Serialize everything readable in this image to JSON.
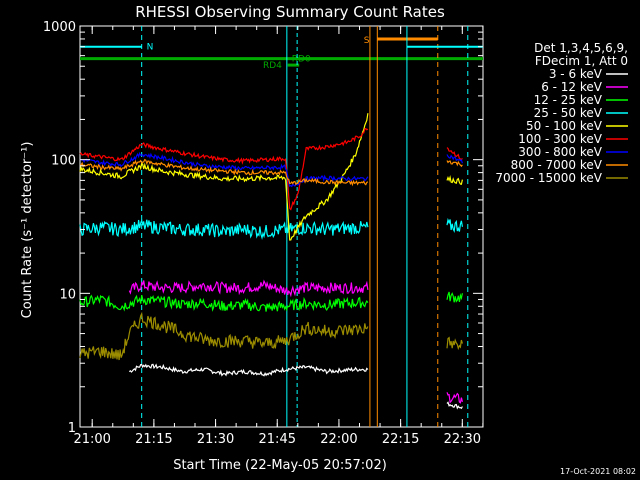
{
  "chart_data": {
    "type": "line",
    "title": "RHESSI Observing Summary Count Rates",
    "xlabel": "Start Time (22-May-05 20:57:02)",
    "ylabel": "Count Rate (s⁻¹ detector⁻¹)",
    "yscale": "log",
    "ylim": [
      1,
      1000
    ],
    "xlim_minutes": [
      0,
      98
    ],
    "x_ticks": [
      "21:00",
      "21:15",
      "21:30",
      "21:45",
      "22:00",
      "22:15",
      "22:30"
    ],
    "y_ticks": [
      "1",
      "10",
      "100",
      "1000"
    ],
    "legend_header": [
      "Det 1,3,4,5,6,9,",
      "FDecim 1, Att 0"
    ],
    "legend_position": "right",
    "footer": "17-Oct-2021 08:02",
    "data_gaps": [
      [
        0,
        12
      ],
      [
        72,
        89
      ]
    ],
    "series": [
      {
        "name": "3 - 6 keV",
        "color": "#ffffff",
        "points": [
          [
            12,
            2.6
          ],
          [
            15,
            2.9
          ],
          [
            20,
            2.8
          ],
          [
            25,
            2.6
          ],
          [
            30,
            2.7
          ],
          [
            35,
            2.5
          ],
          [
            40,
            2.6
          ],
          [
            45,
            2.5
          ],
          [
            50,
            2.7
          ],
          [
            55,
            2.8
          ],
          [
            60,
            2.6
          ],
          [
            67,
            2.7
          ],
          [
            70,
            2.7
          ],
          [
            89,
            1.5
          ],
          [
            93,
            1.4
          ]
        ]
      },
      {
        "name": "6 - 12 keV",
        "color": "#ff00ff",
        "points": [
          [
            12,
            10.5
          ],
          [
            15,
            11.5
          ],
          [
            20,
            11
          ],
          [
            25,
            11
          ],
          [
            30,
            11.5
          ],
          [
            35,
            11
          ],
          [
            40,
            11
          ],
          [
            45,
            11.5
          ],
          [
            50,
            10.5
          ],
          [
            55,
            11
          ],
          [
            60,
            11
          ],
          [
            67,
            11
          ],
          [
            70,
            11
          ],
          [
            89,
            1.7
          ],
          [
            93,
            1.6
          ]
        ]
      },
      {
        "name": "12 - 25 keV",
        "color": "#00ff00",
        "points": [
          [
            0,
            8.5
          ],
          [
            5,
            9
          ],
          [
            10,
            8
          ],
          [
            15,
            9
          ],
          [
            20,
            8.7
          ],
          [
            25,
            8.3
          ],
          [
            30,
            8.5
          ],
          [
            35,
            8
          ],
          [
            40,
            8.2
          ],
          [
            45,
            7.8
          ],
          [
            50,
            8
          ],
          [
            55,
            8.4
          ],
          [
            60,
            8.2
          ],
          [
            67,
            8.5
          ],
          [
            70,
            8.5
          ],
          [
            89,
            9.5
          ],
          [
            93,
            9.2
          ]
        ]
      },
      {
        "name": "25 - 50 keV",
        "color": "#00ffff",
        "points": [
          [
            0,
            30
          ],
          [
            5,
            31
          ],
          [
            10,
            30
          ],
          [
            15,
            32
          ],
          [
            20,
            31
          ],
          [
            25,
            30
          ],
          [
            30,
            30
          ],
          [
            35,
            29
          ],
          [
            40,
            30
          ],
          [
            45,
            29
          ],
          [
            50,
            30
          ],
          [
            55,
            31
          ],
          [
            60,
            30
          ],
          [
            67,
            31
          ],
          [
            70,
            31
          ],
          [
            89,
            32
          ],
          [
            93,
            32
          ]
        ]
      },
      {
        "name": "50 - 100 keV",
        "color": "#ffff00",
        "points": [
          [
            0,
            85
          ],
          [
            5,
            80
          ],
          [
            10,
            75
          ],
          [
            15,
            90
          ],
          [
            20,
            82
          ],
          [
            25,
            78
          ],
          [
            30,
            75
          ],
          [
            35,
            72
          ],
          [
            40,
            72
          ],
          [
            45,
            73
          ],
          [
            50,
            73
          ],
          [
            51,
            25
          ],
          [
            55,
            38
          ],
          [
            60,
            50
          ],
          [
            64,
            75
          ],
          [
            67,
            110
          ],
          [
            69,
            170
          ],
          [
            70,
            220
          ],
          [
            89,
            72
          ],
          [
            93,
            68
          ]
        ]
      },
      {
        "name": "100 - 300 keV",
        "color": "#ff0000",
        "points": [
          [
            0,
            110
          ],
          [
            5,
            105
          ],
          [
            10,
            100
          ],
          [
            15,
            130
          ],
          [
            20,
            120
          ],
          [
            25,
            112
          ],
          [
            30,
            105
          ],
          [
            35,
            100
          ],
          [
            40,
            98
          ],
          [
            45,
            100
          ],
          [
            50,
            102
          ],
          [
            51,
            42
          ],
          [
            53,
            55
          ],
          [
            55,
            120
          ],
          [
            60,
            125
          ],
          [
            65,
            135
          ],
          [
            68,
            150
          ],
          [
            70,
            175
          ],
          [
            89,
            125
          ],
          [
            93,
            100
          ]
        ]
      },
      {
        "name": "300 - 800 keV",
        "color": "#0000ff",
        "points": [
          [
            0,
            100
          ],
          [
            5,
            95
          ],
          [
            10,
            92
          ],
          [
            15,
            110
          ],
          [
            20,
            103
          ],
          [
            25,
            96
          ],
          [
            30,
            90
          ],
          [
            35,
            88
          ],
          [
            40,
            86
          ],
          [
            45,
            87
          ],
          [
            50,
            88
          ],
          [
            51,
            62
          ],
          [
            55,
            72
          ],
          [
            60,
            73
          ],
          [
            65,
            72
          ],
          [
            70,
            72
          ],
          [
            89,
            110
          ],
          [
            93,
            96
          ]
        ]
      },
      {
        "name": "800 - 7000 keV",
        "color": "#ff8c00",
        "points": [
          [
            0,
            92
          ],
          [
            5,
            88
          ],
          [
            10,
            85
          ],
          [
            15,
            98
          ],
          [
            20,
            92
          ],
          [
            25,
            87
          ],
          [
            30,
            84
          ],
          [
            35,
            82
          ],
          [
            40,
            80
          ],
          [
            45,
            80
          ],
          [
            50,
            80
          ],
          [
            51,
            66
          ],
          [
            55,
            70
          ],
          [
            60,
            68
          ],
          [
            65,
            67
          ],
          [
            70,
            67
          ],
          [
            89,
            98
          ],
          [
            93,
            92
          ]
        ]
      },
      {
        "name": "7000 - 15000 keV",
        "color": "#9b8c00",
        "points": [
          [
            0,
            3.5
          ],
          [
            5,
            3.7
          ],
          [
            10,
            3.4
          ],
          [
            12,
            5
          ],
          [
            15,
            6.5
          ],
          [
            20,
            5.8
          ],
          [
            25,
            5
          ],
          [
            30,
            4.5
          ],
          [
            35,
            4.4
          ],
          [
            40,
            4.4
          ],
          [
            45,
            4.2
          ],
          [
            50,
            4.4
          ],
          [
            55,
            5.5
          ],
          [
            60,
            5.2
          ],
          [
            65,
            5.3
          ],
          [
            70,
            5.5
          ],
          [
            89,
            4.3
          ],
          [
            93,
            4
          ]
        ]
      }
    ],
    "annotations": [
      {
        "label": "N",
        "color": "#00ffff"
      },
      {
        "label": "S",
        "color": "#ff8c00"
      },
      {
        "label": "RD0",
        "color": "#00aa00"
      },
      {
        "label": "RD4",
        "color": "#00aa00"
      }
    ],
    "grid": false
  }
}
